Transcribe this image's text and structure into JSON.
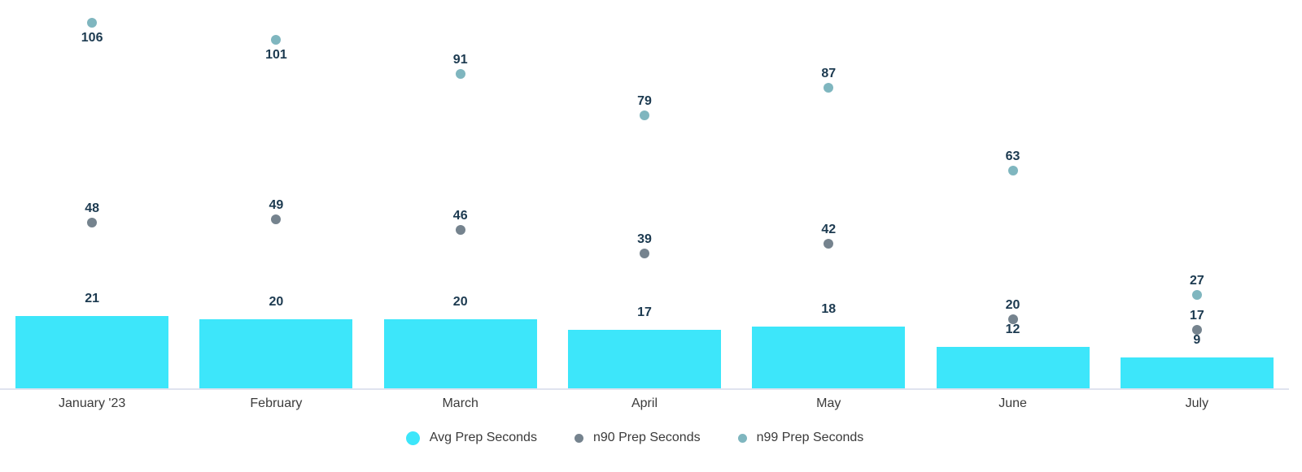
{
  "chart_data": {
    "type": "bar",
    "title": "",
    "categories": [
      "January '23",
      "February",
      "March",
      "April",
      "May",
      "June",
      "July"
    ],
    "series": [
      {
        "name": "Avg Prep Seconds",
        "type": "bar",
        "color": "#3DE6FA",
        "values": [
          21,
          20,
          20,
          17,
          18,
          12,
          9
        ]
      },
      {
        "name": "n90 Prep Seconds",
        "type": "scatter",
        "color": "#75838E",
        "values": [
          48,
          49,
          46,
          39,
          42,
          20,
          17
        ]
      },
      {
        "name": "n99 Prep Seconds",
        "type": "scatter",
        "color": "#7FB6BF",
        "values": [
          106,
          101,
          91,
          79,
          87,
          63,
          27
        ]
      }
    ],
    "xlabel": "",
    "ylabel": "",
    "ylim": [
      0,
      112
    ],
    "grid": false,
    "value_labels": true,
    "legend_position": "bottom",
    "colors": {
      "value_label": "#1C3A50",
      "axis_label": "#3B3B3B",
      "legend_label": "#3A3A3A",
      "baseline": "#DFE3EF",
      "background": "#FFFFFF"
    }
  }
}
